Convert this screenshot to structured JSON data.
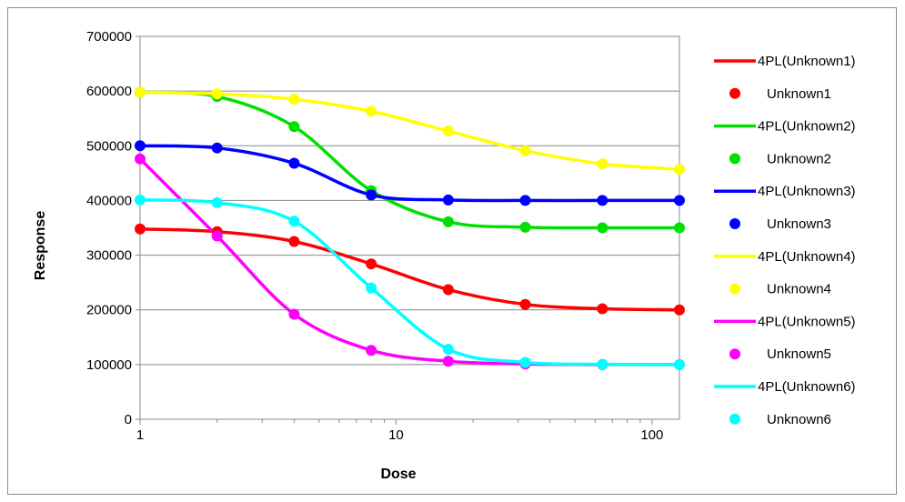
{
  "chart_data": {
    "type": "line",
    "title": "",
    "xlabel": "Dose",
    "ylabel": "Response",
    "xscale": "log",
    "xlim": [
      1,
      128
    ],
    "ylim": [
      0,
      700000
    ],
    "x_ticks": [
      1,
      10,
      100
    ],
    "x_tick_labels": [
      "1",
      "10",
      "100"
    ],
    "y_ticks": [
      0,
      100000,
      200000,
      300000,
      400000,
      500000,
      600000,
      700000
    ],
    "y_tick_labels": [
      "0",
      "100000",
      "200000",
      "300000",
      "400000",
      "500000",
      "600000",
      "700000"
    ],
    "grid": "horizontal",
    "legend_position": "right",
    "x": [
      1,
      2,
      4,
      8,
      16,
      32,
      64,
      128
    ],
    "series": [
      {
        "name": "Unknown1",
        "fit_name": "4PL(Unknown1)",
        "color": "#ff0000",
        "values": [
          348000,
          343000,
          325000,
          284000,
          237000,
          210000,
          202000,
          200000
        ]
      },
      {
        "name": "Unknown2",
        "fit_name": "4PL(Unknown2)",
        "color": "#00e000",
        "values": [
          598000,
          590000,
          535000,
          418000,
          361000,
          351000,
          350000,
          350000
        ]
      },
      {
        "name": "Unknown3",
        "fit_name": "4PL(Unknown3)",
        "color": "#0000ff",
        "values": [
          500000,
          496000,
          468000,
          410000,
          401000,
          400000,
          400000,
          400000
        ]
      },
      {
        "name": "Unknown4",
        "fit_name": "4PL(Unknown4)",
        "color": "#ffff00",
        "values": [
          598000,
          595000,
          585000,
          563000,
          527000,
          491000,
          467000,
          457000
        ]
      },
      {
        "name": "Unknown5",
        "fit_name": "4PL(Unknown5)",
        "color": "#ff00ff",
        "values": [
          476000,
          335000,
          192000,
          126000,
          106000,
          101000,
          100000,
          100000
        ]
      },
      {
        "name": "Unknown6",
        "fit_name": "4PL(Unknown6)",
        "color": "#00ffff",
        "values": [
          401000,
          396000,
          362000,
          240000,
          128000,
          104000,
          100500,
          100000
        ]
      }
    ]
  }
}
